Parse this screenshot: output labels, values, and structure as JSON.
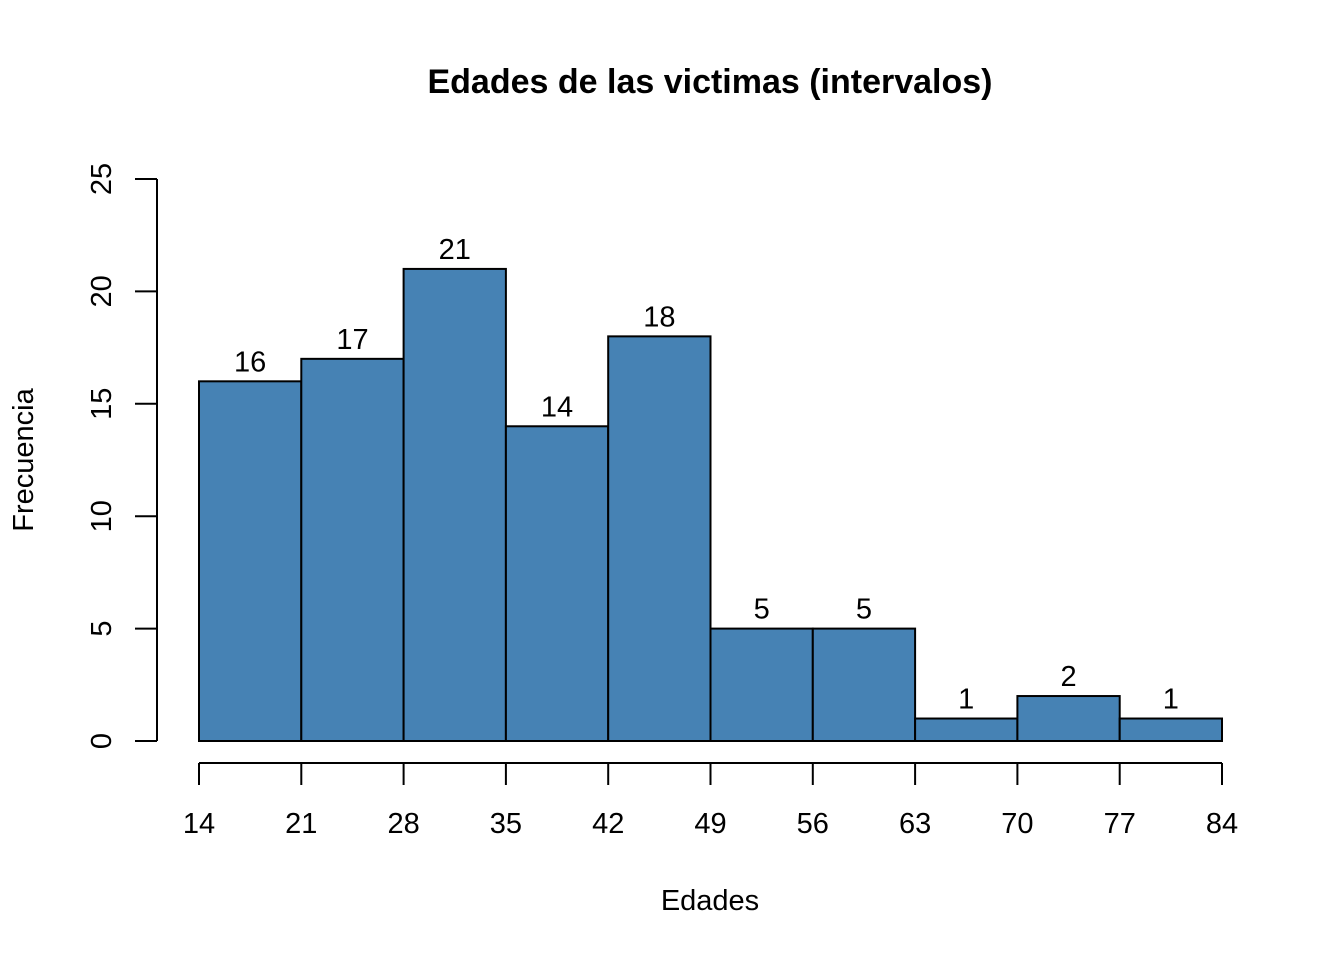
{
  "chart_data": {
    "type": "bar",
    "title": "Edades de las victimas (intervalos)",
    "xlabel": "Edades",
    "ylabel": "Frecuencia",
    "bin_edges": [
      14,
      21,
      28,
      35,
      42,
      49,
      56,
      63,
      70,
      77,
      84
    ],
    "values": [
      16,
      17,
      21,
      14,
      18,
      5,
      5,
      1,
      2,
      1
    ],
    "x_ticks": [
      "14",
      "21",
      "28",
      "35",
      "42",
      "49",
      "56",
      "63",
      "70",
      "77",
      "84"
    ],
    "y_ticks": [
      "0",
      "5",
      "10",
      "15",
      "20",
      "25"
    ],
    "ylim": [
      0,
      25
    ],
    "xlim": [
      14,
      84
    ],
    "bar_color": "#4682B4",
    "bar_border_color": "#000000",
    "grid": false,
    "legend": "none"
  }
}
